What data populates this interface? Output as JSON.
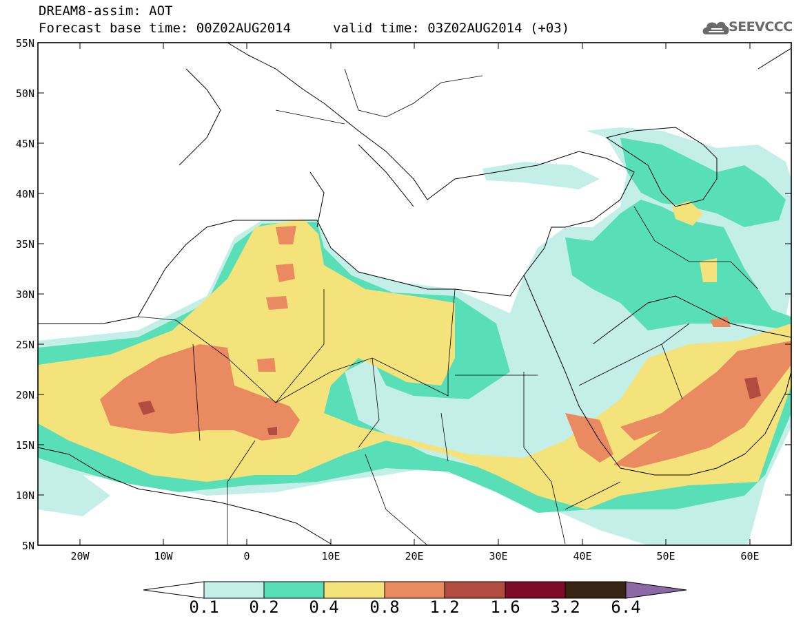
{
  "header": {
    "title_line1": "DREAM8-assim: AOT",
    "title_line2": "Forecast base time: 00Z02AUG2014",
    "valid_time": "valid time: 03Z02AUG2014 (+03)",
    "logo_text": "SEEVCCC"
  },
  "axes": {
    "lat_labels": [
      "55N",
      "50N",
      "45N",
      "40N",
      "35N",
      "30N",
      "25N",
      "20N",
      "15N",
      "10N",
      "5N"
    ],
    "lon_labels": [
      "20W",
      "10W",
      "0",
      "10E",
      "20E",
      "30E",
      "40E",
      "50E",
      "60E"
    ]
  },
  "colorbar": {
    "labels": [
      "0.1",
      "0.2",
      "0.4",
      "0.8",
      "1.2",
      "1.6",
      "3.2",
      "6.4"
    ],
    "colors": [
      "#c3efe8",
      "#58dfb8",
      "#f4e27a",
      "#e98a60",
      "#b24c40",
      "#800b28",
      "#3a2414",
      "#8c68a6"
    ]
  }
}
